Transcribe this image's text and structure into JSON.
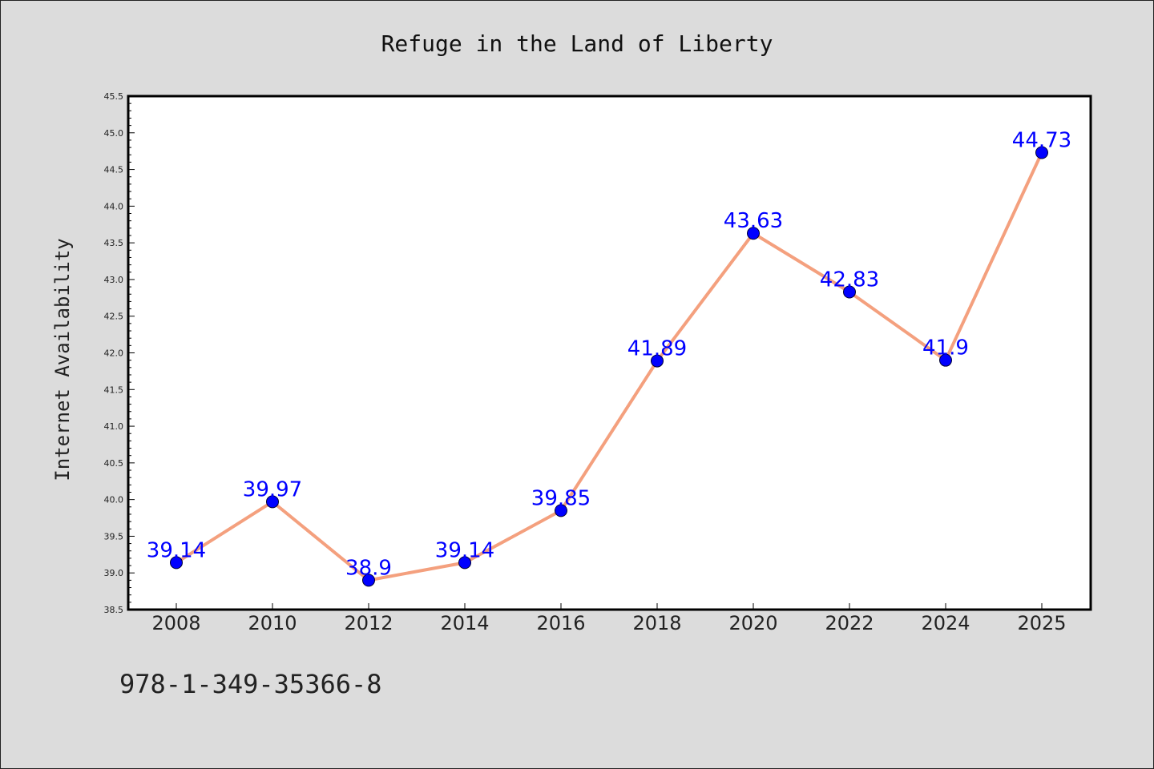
{
  "chart_data": {
    "type": "line",
    "title": "Refuge in the Land of Liberty",
    "xlabel": "",
    "ylabel": "Internet Availability",
    "categories": [
      "2008",
      "2010",
      "2012",
      "2014",
      "2016",
      "2018",
      "2020",
      "2022",
      "2024",
      "2025"
    ],
    "series": [
      {
        "values": [
          39.14,
          39.97,
          38.9,
          39.14,
          39.85,
          41.89,
          43.63,
          42.83,
          41.9,
          44.73
        ],
        "labels": [
          "39.14",
          "39.97",
          "38.9",
          "39.14",
          "39.85",
          "41.89",
          "43.63",
          "42.83",
          "41.9",
          "44.73"
        ],
        "line_color": "#f4a07e",
        "marker_color": "#0000ff"
      }
    ],
    "ylim": [
      38.5,
      45.5
    ],
    "yticks": [
      "38.5",
      "39.0",
      "39.5",
      "40.0",
      "40.5",
      "41.0",
      "41.5",
      "42.0",
      "42.5",
      "43.0",
      "43.5",
      "44.0",
      "44.5",
      "45.0",
      "45.5"
    ],
    "grid": false,
    "legend": "none"
  },
  "footer": {
    "isbn": "978-1-349-35366-8"
  },
  "colors": {
    "background": "#dcdcdc",
    "plot_background": "#ffffff",
    "label_color": "#0000ff"
  }
}
